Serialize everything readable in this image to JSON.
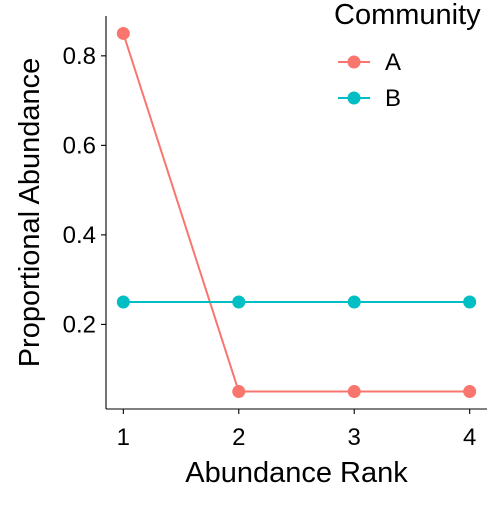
{
  "chart_data": {
    "type": "line",
    "xlabel": "Abundance Rank",
    "ylabel": "Proportional Abundance",
    "x": [
      1,
      2,
      3,
      4
    ],
    "xticks": [
      1,
      2,
      3,
      4
    ],
    "xtick_labels": [
      "1",
      "2",
      "3",
      "4"
    ],
    "yticks": [
      0.2,
      0.4,
      0.6,
      0.8
    ],
    "ytick_labels": [
      "0.2",
      "0.4",
      "0.6",
      "0.8"
    ],
    "xlim": [
      0.85,
      4.15
    ],
    "ylim": [
      0.011,
      0.889
    ],
    "grid": false,
    "legend": {
      "title": "Community",
      "position": "top-right"
    },
    "series": [
      {
        "name": "A",
        "color": "#F8766D",
        "values": [
          0.85,
          0.05,
          0.05,
          0.05
        ]
      },
      {
        "name": "B",
        "color": "#00BFC4",
        "values": [
          0.25,
          0.25,
          0.25,
          0.25
        ]
      }
    ]
  }
}
